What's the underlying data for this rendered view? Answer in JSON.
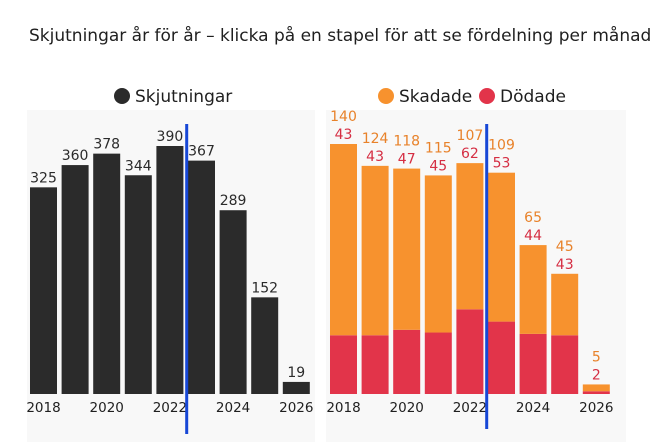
{
  "title": "Skjutningar år för år – klicka på en stapel för att se fördelning per månad",
  "colors": {
    "shootings": "#2b2b2b",
    "injured": "#f7922e",
    "killed": "#e2344a",
    "marker": "#1747d6",
    "panel_background": "#f8f8f8",
    "shootings_label": "#2b2b2b",
    "injured_label": "#e8822a",
    "killed_label": "#d52e43"
  },
  "chart_data": [
    {
      "type": "bar",
      "categories": [
        "2018",
        "2019",
        "2020",
        "2021",
        "2022",
        "2023",
        "2024",
        "2025",
        "2026"
      ],
      "series": [
        {
          "name": "Skjutningar",
          "values": [
            325,
            360,
            378,
            344,
            390,
            367,
            289,
            152,
            19
          ]
        }
      ],
      "x_tick_labels": [
        "2018",
        "2020",
        "2022",
        "2024",
        "2026"
      ],
      "ylim": [
        0,
        400
      ],
      "grid": false,
      "legend_position": "top-center",
      "annotations": [
        "vertical marker line between 2022 and 2023"
      ]
    },
    {
      "type": "bar",
      "stacked": true,
      "categories": [
        "2018",
        "2019",
        "2020",
        "2021",
        "2022",
        "2023",
        "2024",
        "2025",
        "2026"
      ],
      "series": [
        {
          "name": "Skadade",
          "values": [
            140,
            124,
            118,
            115,
            107,
            109,
            65,
            45,
            5
          ]
        },
        {
          "name": "Dödade",
          "values": [
            43,
            43,
            47,
            45,
            62,
            53,
            44,
            43,
            2
          ]
        }
      ],
      "x_tick_labels": [
        "2018",
        "2020",
        "2022",
        "2024",
        "2026"
      ],
      "ylim": [
        0,
        200
      ],
      "grid": false,
      "legend_position": "top-center",
      "annotations": [
        "vertical marker line between 2022 and 2023"
      ]
    }
  ]
}
